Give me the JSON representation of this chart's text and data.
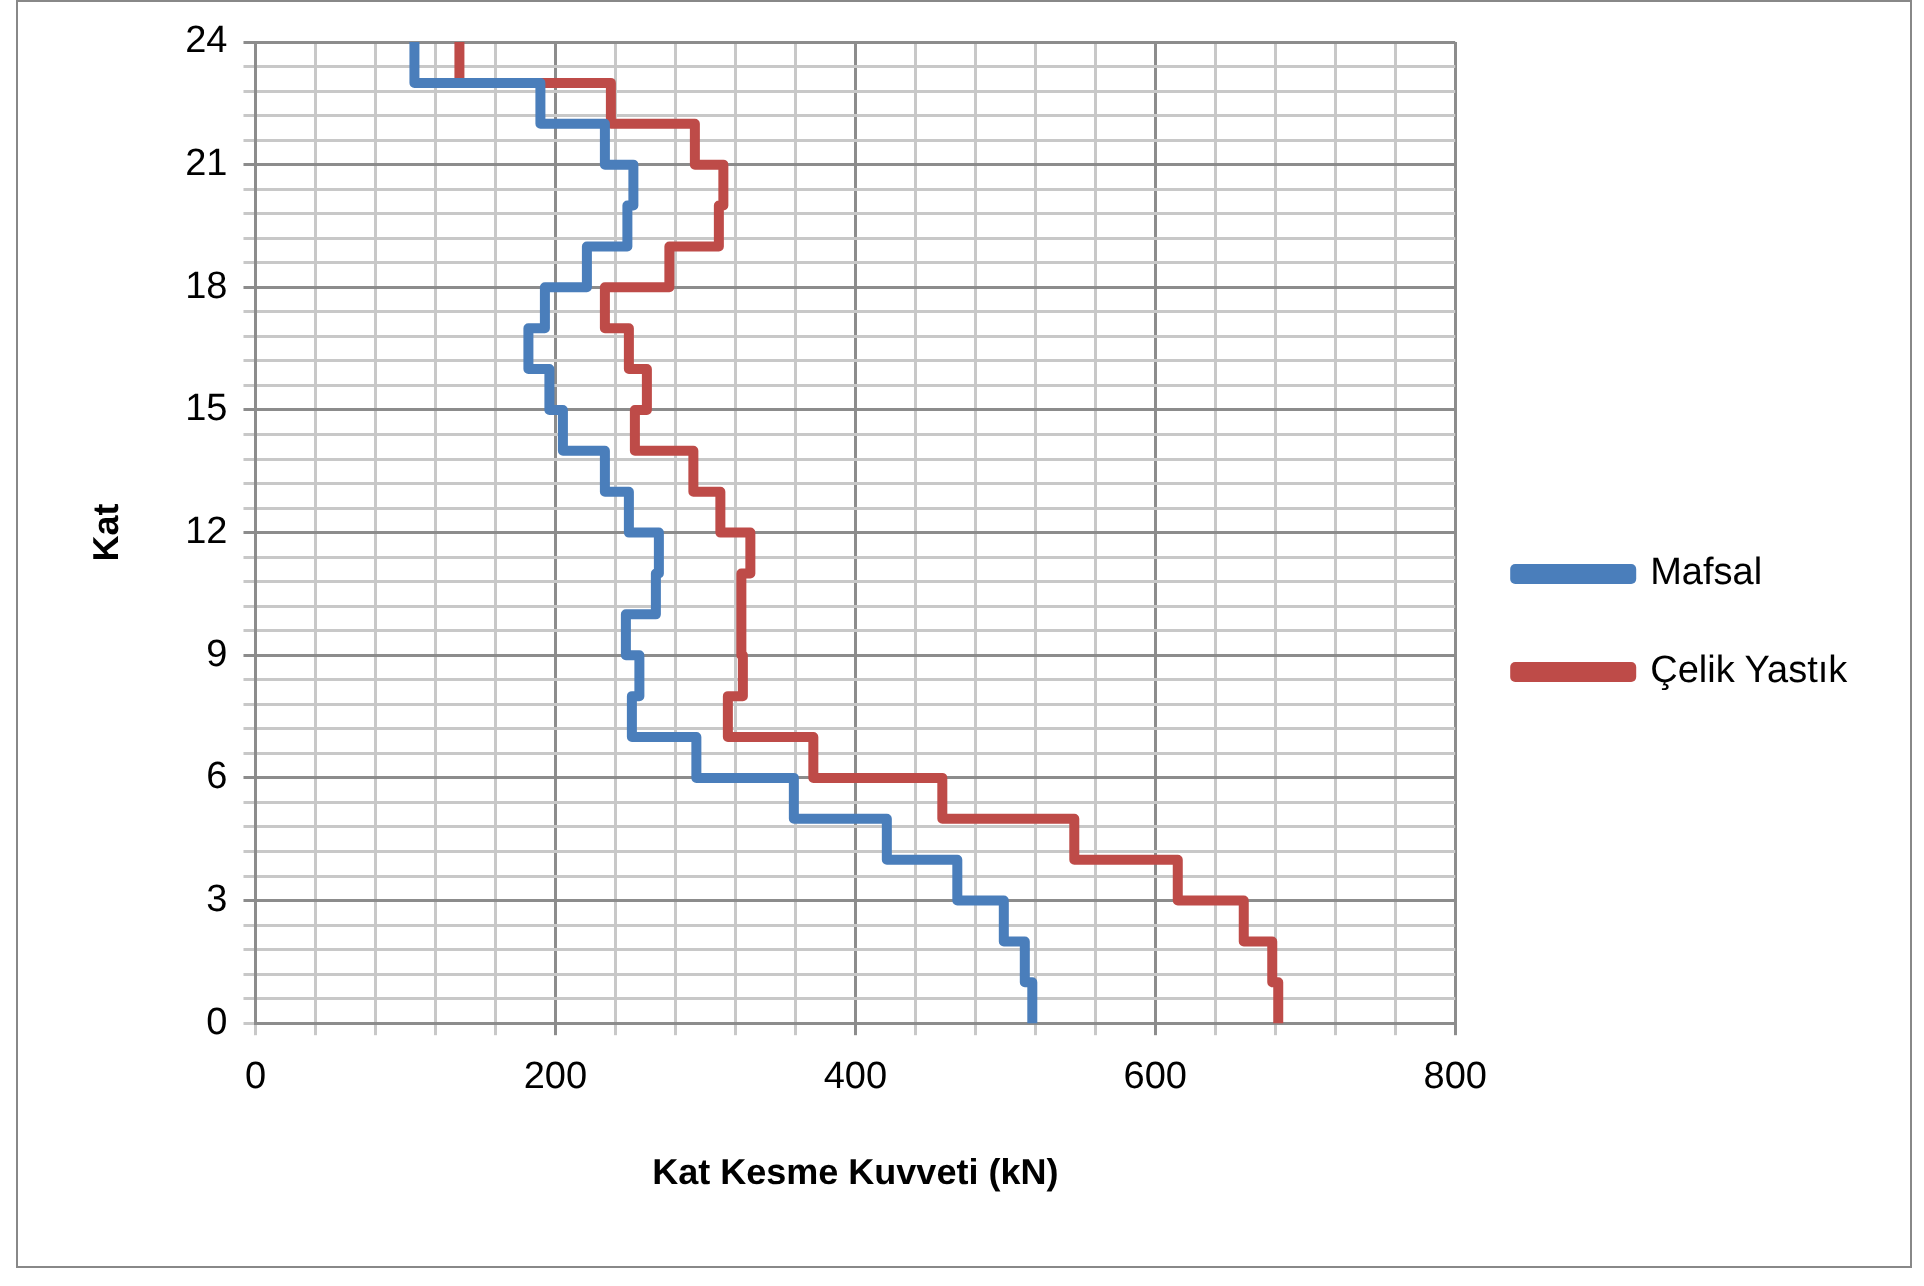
{
  "chart_data": {
    "type": "line",
    "xlabel": "Kat Kesme Kuvveti (kN)",
    "ylabel": "Kat",
    "legend": "right",
    "grid": true,
    "xlim": [
      0,
      800
    ],
    "xticks": [
      0,
      {
        "value": 40,
        "label": null
      },
      {
        "value": 80,
        "label": null
      },
      {
        "value": 120,
        "label": null
      },
      {
        "value": 160,
        "label": null
      },
      200,
      {
        "value": 240,
        "label": null
      },
      {
        "value": 280,
        "label": null
      },
      {
        "value": 320,
        "label": null
      },
      {
        "value": 360,
        "label": null
      },
      400,
      {
        "value": 440,
        "label": null
      },
      {
        "value": 480,
        "label": null
      },
      {
        "value": 520,
        "label": null
      },
      {
        "value": 560,
        "label": null
      },
      600,
      {
        "value": 640,
        "label": null
      },
      {
        "value": 680,
        "label": null
      },
      {
        "value": 720,
        "label": null
      },
      {
        "value": 760,
        "label": null
      },
      800
    ],
    "ylim": [
      0,
      24
    ],
    "yticks": [
      0,
      {
        "value": 0.6,
        "label": null
      },
      {
        "value": 1.2,
        "label": null
      },
      {
        "value": 1.8,
        "label": null
      },
      {
        "value": 2.4,
        "label": null
      },
      3,
      {
        "value": 3.6,
        "label": null
      },
      {
        "value": 4.2,
        "label": null
      },
      {
        "value": 4.8,
        "label": null
      },
      {
        "value": 5.4,
        "label": null
      },
      6,
      {
        "value": 6.6,
        "label": null
      },
      {
        "value": 7.2,
        "label": null
      },
      {
        "value": 7.8,
        "label": null
      },
      {
        "value": 8.4,
        "label": null
      },
      9,
      {
        "value": 9.6,
        "label": null
      },
      {
        "value": 10.2,
        "label": null
      },
      {
        "value": 10.8,
        "label": null
      },
      {
        "value": 11.4,
        "label": null
      },
      12,
      {
        "value": 12.6,
        "label": null
      },
      {
        "value": 13.2,
        "label": null
      },
      {
        "value": 13.8,
        "label": null
      },
      {
        "value": 14.4,
        "label": null
      },
      15,
      {
        "value": 15.6,
        "label": null
      },
      {
        "value": 16.2,
        "label": null
      },
      {
        "value": 16.8,
        "label": null
      },
      {
        "value": 17.4,
        "label": null
      },
      18,
      {
        "value": 18.6,
        "label": null
      },
      {
        "value": 19.2,
        "label": null
      },
      {
        "value": 19.8,
        "label": null
      },
      {
        "value": 20.4,
        "label": null
      },
      21,
      {
        "value": 21.6,
        "label": null
      },
      {
        "value": 22.2,
        "label": null
      },
      {
        "value": 22.8,
        "label": null
      },
      {
        "value": 23.4,
        "label": null
      },
      24
    ],
    "series": [
      {
        "name": "Mafsal",
        "color": "#4a7ebb",
        "x": [
          518,
          518,
          513,
          513,
          499,
          499,
          468,
          468,
          421,
          421,
          359,
          359,
          294,
          294,
          251,
          251,
          256,
          256,
          247,
          247,
          267,
          267,
          269,
          269,
          249,
          249,
          233,
          233,
          205,
          205,
          196,
          196,
          182,
          182,
          193,
          193,
          221,
          221,
          248,
          248,
          252,
          252,
          233,
          233,
          190,
          190,
          106,
          106
        ],
        "values": [
          0,
          1,
          1,
          2,
          2,
          3,
          3,
          4,
          4,
          5,
          5,
          6,
          6,
          7,
          7,
          8,
          8,
          9,
          9,
          10,
          10,
          11,
          11,
          12,
          12,
          13,
          13,
          14,
          14,
          15,
          15,
          16,
          16,
          17,
          17,
          18,
          18,
          19,
          19,
          20,
          20,
          21,
          21,
          22,
          22,
          23,
          23,
          24
        ]
      },
      {
        "name": "Çelik Yastık",
        "color": "#be4b48",
        "x": [
          682,
          682,
          678,
          678,
          659,
          659,
          615,
          615,
          546,
          546,
          458,
          458,
          372,
          372,
          315,
          315,
          325,
          325,
          324,
          324,
          330,
          330,
          310,
          310,
          292,
          292,
          253,
          253,
          261,
          261,
          249,
          249,
          233,
          233,
          276,
          276,
          309,
          309,
          312,
          312,
          293,
          293,
          237,
          237,
          136,
          136
        ],
        "values": [
          0,
          1,
          1,
          2,
          2,
          3,
          3,
          4,
          4,
          5,
          5,
          6,
          6,
          7,
          7,
          8,
          8,
          9,
          9,
          11,
          11,
          12,
          12,
          13,
          13,
          14,
          14,
          15,
          15,
          16,
          16,
          17,
          17,
          18,
          18,
          19,
          19,
          20,
          20,
          21,
          21,
          22,
          22,
          23,
          23,
          24
        ]
      }
    ]
  }
}
